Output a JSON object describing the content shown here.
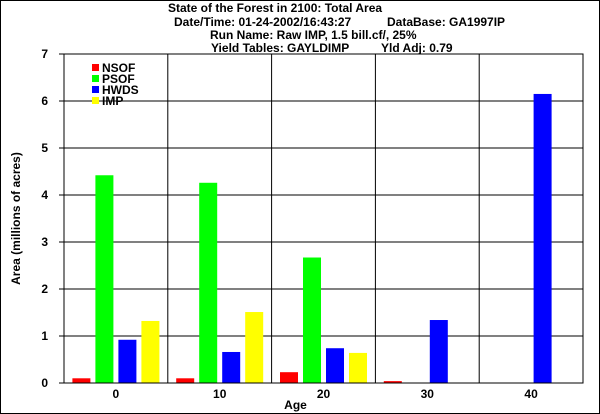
{
  "header": {
    "title": "State of the Forest in 2100: Total Area",
    "datetime": "Date/Time: 01-24-2002/16:43:27",
    "database": "DataBase: GA1997IP",
    "run_name": "Run Name: Raw IMP, 1.5 bill.cf/, 25%",
    "yield_tables": "Yield Tables: GAYLDIMP",
    "yld_adj": "Yld Adj: 0.79"
  },
  "colors": {
    "NSOF": "#ff0000",
    "PSOF": "#00ff00",
    "HWDS": "#0000ff",
    "IMP": "#ffff00"
  },
  "chart_data": {
    "type": "bar",
    "title": "State of the Forest in 2100: Total Area",
    "xlabel": "Age",
    "ylabel": "Area (millions of acres)",
    "ylim": [
      0,
      7
    ],
    "yticks": [
      0,
      1,
      2,
      3,
      4,
      5,
      6,
      7
    ],
    "categories": [
      "0",
      "10",
      "20",
      "30",
      "40"
    ],
    "grid": true,
    "legend_position": "top-left",
    "series": [
      {
        "name": "NSOF",
        "color": "#ff0000",
        "values": [
          0.1,
          0.1,
          0.23,
          0.04,
          0
        ]
      },
      {
        "name": "PSOF",
        "color": "#00ff00",
        "values": [
          4.42,
          4.26,
          2.67,
          0,
          0
        ]
      },
      {
        "name": "HWDS",
        "color": "#0000ff",
        "values": [
          0.92,
          0.66,
          0.74,
          1.34,
          6.15
        ]
      },
      {
        "name": "IMP",
        "color": "#ffff00",
        "values": [
          1.32,
          1.51,
          0.64,
          0,
          0
        ]
      }
    ]
  }
}
